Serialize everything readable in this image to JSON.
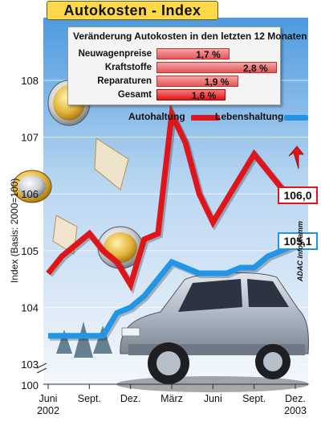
{
  "title": "Autokosten - Index",
  "inset": {
    "title": "Veränderung Autokosten in den letzten 12 Monaten",
    "rows": [
      {
        "label": "Neuwagenpreise",
        "value_text": "1,7 %",
        "value": 1.7
      },
      {
        "label": "Kraftstoffe",
        "value_text": "2,8 %",
        "value": 2.8
      },
      {
        "label": "Reparaturen",
        "value_text": "1,9 %",
        "value": 1.9
      },
      {
        "label": "Gesamt",
        "value_text": "1,6 %",
        "value": 1.6
      }
    ]
  },
  "ylabel": "Index (Basis: 2000=100)",
  "credit": "ADAC Infogramm",
  "colors": {
    "autohaltung": "#e0141b",
    "lebenshaltung": "#2196e8",
    "title_bg": "#ffd84a"
  },
  "chart_data": {
    "type": "line",
    "title": "Autokosten - Index",
    "ylabel": "Index (Basis: 2000=100)",
    "ylim": [
      103,
      108.4
    ],
    "yticks": [
      "103",
      "104",
      "105",
      "106",
      "107",
      "108"
    ],
    "base_tick": "100",
    "categories": [
      "Juni 2002",
      "Sept.",
      "Dez.",
      "März",
      "Juni",
      "Sept.",
      "Dez. 2003"
    ],
    "x_tick_lines": [
      [
        "Juni",
        "2002"
      ],
      [
        "Sept."
      ],
      [
        "Dez."
      ],
      [
        "März"
      ],
      [
        "Juni"
      ],
      [
        "Sept."
      ],
      [
        "Dez.",
        "2003"
      ]
    ],
    "x": [
      0,
      3,
      6,
      9,
      12,
      15,
      18
    ],
    "series": [
      {
        "name": "Autohaltung",
        "color": "#e0141b",
        "x": [
          0,
          1,
          2,
          3,
          4,
          5,
          6,
          7,
          8,
          9,
          10,
          11,
          12,
          13,
          14,
          15,
          16,
          17,
          18
        ],
        "values": [
          104.6,
          104.9,
          105.1,
          105.3,
          105.0,
          104.8,
          104.4,
          105.2,
          105.3,
          107.4,
          106.9,
          106.0,
          105.5,
          105.9,
          106.3,
          106.7,
          106.4,
          106.1,
          106.0
        ],
        "end_label": "106,0"
      },
      {
        "name": "Lebenshaltung",
        "color": "#2196e8",
        "x": [
          0,
          1,
          2,
          3,
          4,
          5,
          6,
          7,
          8,
          9,
          10,
          11,
          12,
          13,
          14,
          15,
          16,
          17,
          18
        ],
        "values": [
          103.5,
          103.5,
          103.5,
          103.5,
          103.5,
          103.9,
          104.0,
          104.2,
          104.5,
          104.8,
          104.7,
          104.6,
          104.6,
          104.6,
          104.7,
          104.7,
          104.9,
          105.0,
          105.1
        ],
        "end_label": "105,1"
      }
    ]
  }
}
